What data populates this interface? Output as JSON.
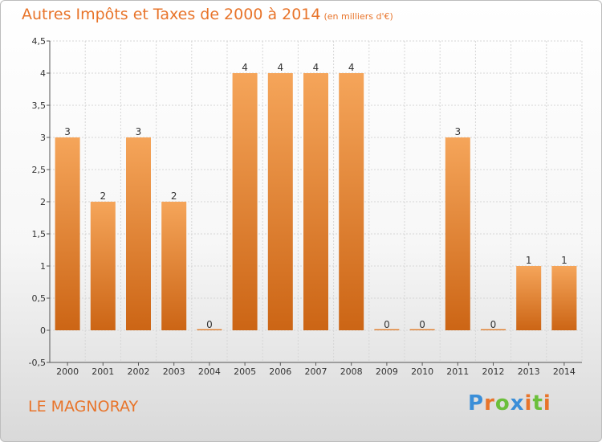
{
  "chart_data": {
    "type": "bar",
    "title": "Autres Impôts et Taxes de 2000 à 2014",
    "subtitle": "(en milliers d'€)",
    "categories": [
      "2000",
      "2001",
      "2002",
      "2003",
      "2004",
      "2005",
      "2006",
      "2007",
      "2008",
      "2009",
      "2010",
      "2011",
      "2012",
      "2013",
      "2014"
    ],
    "values": [
      3,
      2,
      3,
      2,
      0,
      4,
      4,
      4,
      4,
      0,
      0,
      3,
      0,
      1,
      1
    ],
    "data_labels": [
      "3",
      "2",
      "3",
      "2",
      "0",
      "4",
      "4",
      "4",
      "4",
      "0",
      "0",
      "3",
      "0",
      "1",
      "1"
    ],
    "y_ticks": [
      "-0,5",
      "0",
      "0,5",
      "1",
      "1,5",
      "2",
      "2,5",
      "3",
      "3,5",
      "4",
      "4,5"
    ],
    "ylim": [
      -0.5,
      4.5
    ],
    "grid": true,
    "bar_color": "#e8832f",
    "xlabel": "",
    "ylabel": ""
  },
  "footer": {
    "place": "LE MAGNORAY",
    "logo": [
      "P",
      "r",
      "o",
      "x",
      "i",
      "t",
      "i"
    ],
    "logo_colors": [
      "#3a8ed8",
      "#e8742a",
      "#6bbf3a",
      "#3a8ed8",
      "#e8742a",
      "#6bbf3a",
      "#e8742a"
    ]
  },
  "colors": {
    "accent": "#e8742a",
    "bar_light": "#f5a55a",
    "bar_dark": "#cc6515"
  }
}
